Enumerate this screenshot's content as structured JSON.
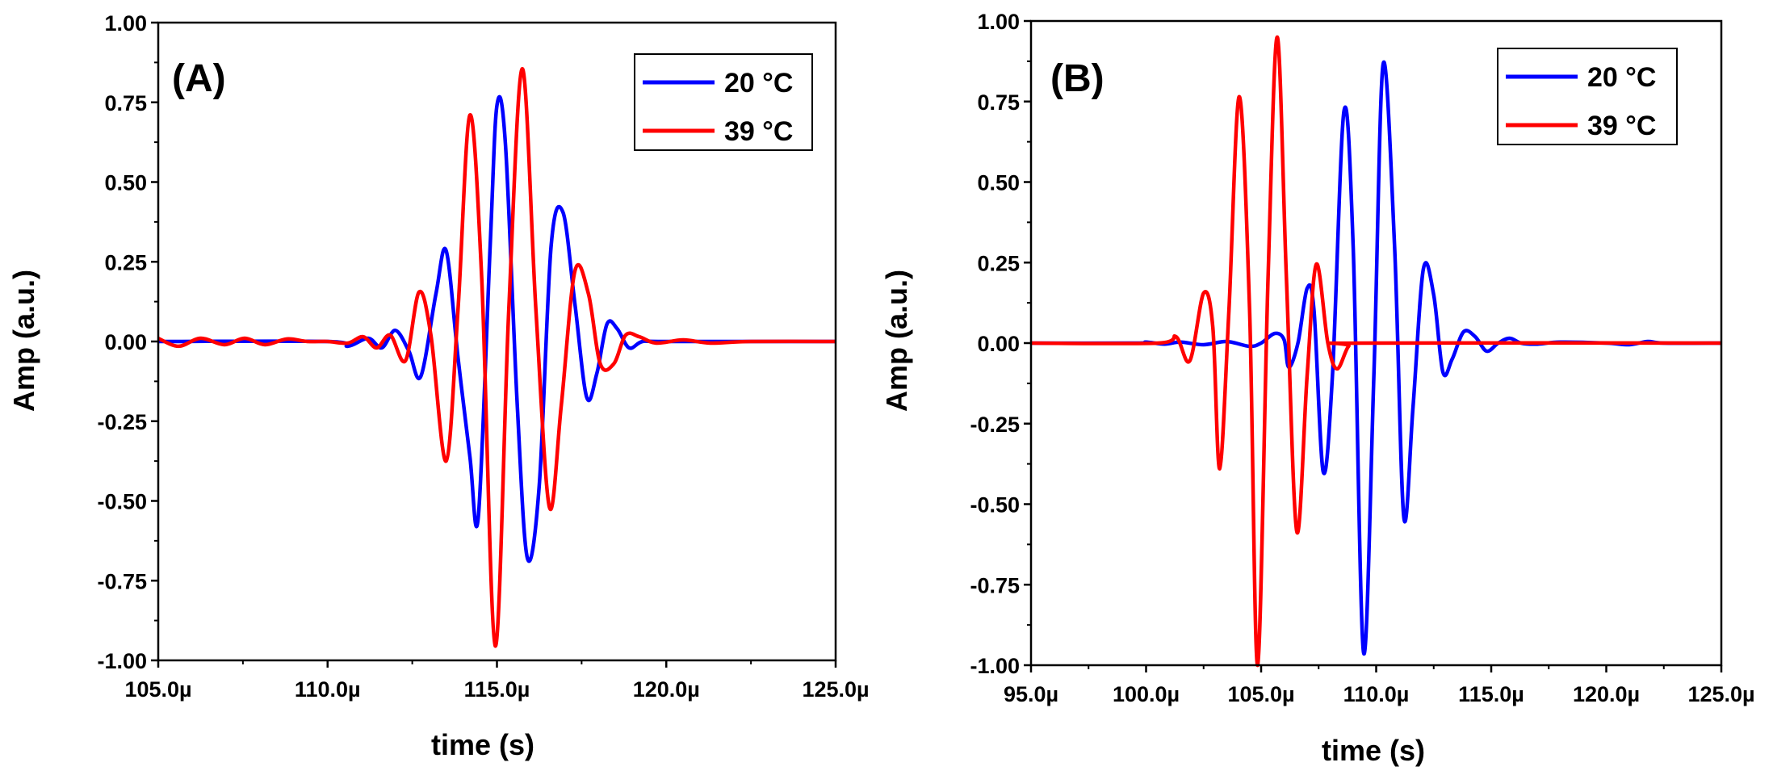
{
  "chart_data": [
    {
      "type": "line",
      "panel_label": "(A)",
      "xlabel": "time (s)",
      "ylabel": "Amp (a.u.)",
      "xlim": [
        105.0,
        125.0
      ],
      "ylim": [
        -1.0,
        1.0
      ],
      "x_unit": "µs",
      "x_ticks": [
        105,
        110,
        115,
        120,
        125
      ],
      "x_tick_labels": [
        "105.0µ",
        "110.0µ",
        "115.0µ",
        "120.0µ",
        "125.0µ"
      ],
      "y_ticks": [
        1.0,
        0.75,
        0.5,
        0.25,
        0.0,
        -0.25,
        -0.5,
        -0.75,
        -1.0
      ],
      "y_tick_labels": [
        "1.00",
        "0.75",
        "0.50",
        "0.25",
        "0.00",
        "-0.25",
        "-0.50",
        "-0.75",
        "-1.00"
      ],
      "legend_position": "top-right",
      "series": [
        {
          "name": "20 °C",
          "color": "#0000ff",
          "x": [
            105.0,
            110.0,
            110.6,
            111.2,
            111.6,
            112.0,
            112.4,
            112.75,
            113.2,
            113.5,
            113.85,
            114.2,
            114.45,
            114.8,
            115.0,
            115.25,
            115.6,
            115.9,
            116.25,
            116.6,
            116.95,
            117.3,
            117.65,
            117.95,
            118.25,
            118.55,
            118.9,
            119.3,
            120.0,
            125.0
          ],
          "values": [
            0.0,
            0.0,
            -0.015,
            0.01,
            -0.02,
            0.035,
            -0.03,
            -0.11,
            0.15,
            0.285,
            -0.05,
            -0.36,
            -0.55,
            0.3,
            0.74,
            0.62,
            -0.2,
            -0.68,
            -0.45,
            0.3,
            0.405,
            0.12,
            -0.175,
            -0.1,
            0.055,
            0.04,
            -0.02,
            0.0,
            0.0,
            0.0
          ]
        },
        {
          "name": "39 °C",
          "color": "#ff0000",
          "x": [
            105.0,
            105.6,
            106.25,
            106.95,
            107.55,
            108.15,
            108.8,
            109.4,
            110.0,
            110.6,
            111.05,
            111.45,
            111.85,
            112.3,
            112.7,
            113.05,
            113.5,
            113.85,
            114.2,
            114.55,
            114.95,
            115.35,
            115.75,
            116.15,
            116.55,
            116.9,
            117.3,
            117.7,
            118.05,
            118.45,
            118.8,
            119.2,
            119.7,
            120.5,
            121.3,
            122.5,
            125.0
          ],
          "values": [
            0.01,
            -0.015,
            0.01,
            -0.01,
            0.01,
            -0.01,
            0.008,
            0.0,
            0.0,
            -0.005,
            0.015,
            -0.02,
            0.02,
            -0.06,
            0.155,
            0.02,
            -0.375,
            0.1,
            0.71,
            0.2,
            -0.955,
            0.1,
            0.855,
            0.1,
            -0.52,
            -0.2,
            0.22,
            0.15,
            -0.07,
            -0.07,
            0.02,
            0.015,
            -0.005,
            0.005,
            -0.005,
            0.0,
            0.0
          ]
        }
      ]
    },
    {
      "type": "line",
      "panel_label": "(B)",
      "xlabel": "time (s)",
      "ylabel": "Amp (a.u.)",
      "xlim": [
        95.0,
        125.0
      ],
      "ylim": [
        -1.0,
        1.0
      ],
      "x_unit": "µs",
      "x_ticks": [
        95,
        100,
        105,
        110,
        115,
        120,
        125
      ],
      "x_tick_labels": [
        "95.0µ",
        "100.0µ",
        "105.0µ",
        "110.0µ",
        "115.0µ",
        "120.0µ",
        "125.0µ"
      ],
      "y_ticks": [
        1.0,
        0.75,
        0.5,
        0.25,
        0.0,
        -0.25,
        -0.5,
        -0.75,
        -1.0
      ],
      "y_tick_labels": [
        "1.00",
        "0.75",
        "0.50",
        "0.25",
        "0.00",
        "-0.25",
        "-0.50",
        "-0.75",
        "-1.00"
      ],
      "legend_position": "top-right",
      "series": [
        {
          "name": "20 °C",
          "color": "#0000ff",
          "x": [
            95.0,
            99.5,
            100.0,
            100.8,
            101.5,
            102.5,
            103.5,
            104.5,
            105.0,
            105.6,
            106.0,
            106.2,
            106.6,
            107.0,
            107.3,
            107.7,
            108.1,
            108.6,
            109.0,
            109.45,
            109.9,
            110.3,
            110.8,
            111.2,
            111.6,
            112.05,
            112.5,
            112.9,
            113.3,
            113.8,
            114.3,
            114.8,
            115.3,
            115.8,
            116.3,
            117.0,
            118.0,
            120.0,
            121.0,
            121.8,
            122.5,
            125.0
          ],
          "values": [
            0.0,
            0.0,
            0.003,
            -0.003,
            0.003,
            -0.005,
            0.005,
            -0.01,
            0.0,
            0.03,
            0.01,
            -0.075,
            0.0,
            0.17,
            0.1,
            -0.4,
            -0.1,
            0.72,
            0.3,
            -0.96,
            -0.1,
            0.865,
            0.3,
            -0.54,
            -0.2,
            0.23,
            0.15,
            -0.09,
            -0.05,
            0.035,
            0.02,
            -0.025,
            0.0,
            0.015,
            0.0,
            -0.003,
            0.003,
            0.0,
            -0.005,
            0.005,
            0.0,
            0.0
          ]
        },
        {
          "name": "39 °C",
          "color": "#ff0000",
          "x": [
            95.0,
            100.5,
            101.3,
            101.9,
            102.5,
            102.9,
            103.2,
            103.6,
            104.05,
            104.5,
            104.85,
            105.3,
            105.7,
            106.1,
            106.55,
            107.0,
            107.4,
            107.9,
            108.3,
            108.8,
            109.3,
            125.0
          ],
          "values": [
            0.0,
            0.0,
            0.02,
            -0.055,
            0.155,
            0.05,
            -0.39,
            0.1,
            0.765,
            0.1,
            -1.0,
            0.2,
            0.95,
            0.2,
            -0.585,
            -0.1,
            0.245,
            0.0,
            -0.08,
            -0.01,
            0.0,
            0.0
          ]
        }
      ]
    }
  ]
}
